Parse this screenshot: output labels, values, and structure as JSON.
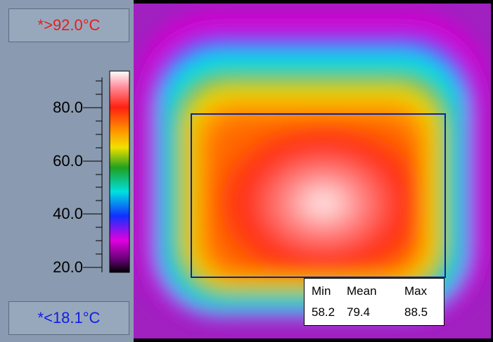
{
  "range": {
    "max_label": "*>92.0°C",
    "min_label": "*<18.1°C"
  },
  "scale": {
    "ticks": [
      "80.0",
      "60.0",
      "40.0",
      "20.0"
    ]
  },
  "stats": {
    "headers": [
      "Min",
      "Mean",
      "Max"
    ],
    "values": [
      "58.2",
      "79.4",
      "88.5"
    ]
  }
}
